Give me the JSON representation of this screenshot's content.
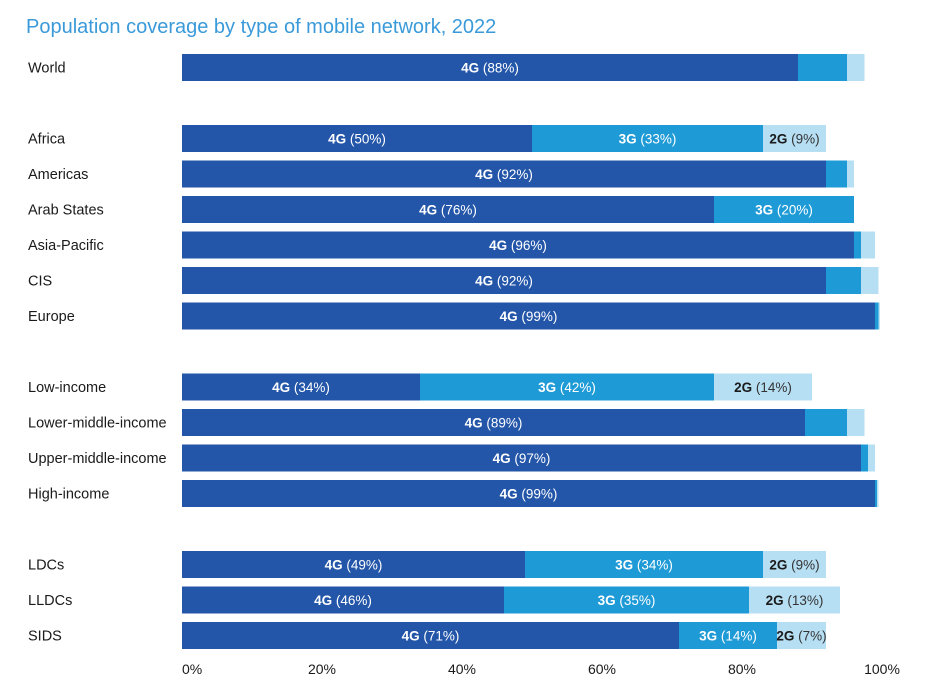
{
  "chart_data": {
    "type": "bar",
    "orientation": "horizontal",
    "stacked": true,
    "title": "Population coverage by type of mobile network, 2022",
    "xlim": [
      0,
      100
    ],
    "x_ticks": [
      "0%",
      "20%",
      "40%",
      "60%",
      "80%",
      "100%"
    ],
    "grid": false,
    "legend": "none",
    "colors": {
      "4G": "#2356a8",
      "3G": "#1e9ad6",
      "2G": "#b7dff3"
    },
    "groups": [
      [
        "World"
      ],
      [
        "Africa",
        "Americas",
        "Arab States",
        "Asia-Pacific",
        "CIS",
        "Europe"
      ],
      [
        "Low-income",
        "Lower-middle-income",
        "Upper-middle-income",
        "High-income"
      ],
      [
        "LDCs",
        "LLDCs",
        "SIDS"
      ]
    ],
    "categories": [
      "World",
      "Africa",
      "Americas",
      "Arab States",
      "Asia-Pacific",
      "CIS",
      "Europe",
      "Low-income",
      "Lower-middle-income",
      "Upper-middle-income",
      "High-income",
      "LDCs",
      "LLDCs",
      "SIDS"
    ],
    "series": [
      {
        "name": "4G",
        "values": [
          88,
          50,
          92,
          76,
          96,
          92,
          99,
          34,
          89,
          97,
          99,
          49,
          46,
          71
        ],
        "labels": [
          "4G (88%)",
          "4G (50%)",
          "4G (92%)",
          "4G (76%)",
          "4G (96%)",
          "4G (92%)",
          "4G (99%)",
          "4G (34%)",
          "4G (89%)",
          "4G (97%)",
          "4G (99%)",
          "4G (49%)",
          "4G (46%)",
          "4G (71%)"
        ]
      },
      {
        "name": "3G",
        "values": [
          7,
          33,
          3,
          20,
          1,
          5,
          0.5,
          42,
          6,
          1,
          0.3,
          34,
          35,
          14
        ],
        "labels": [
          "",
          "3G (33%)",
          "",
          "3G (20%)",
          "",
          "",
          "",
          "3G (42%)",
          "",
          "",
          "",
          "3G (34%)",
          "3G (35%)",
          "3G (14%)"
        ]
      },
      {
        "name": "2G",
        "values": [
          2.5,
          9,
          1,
          0,
          2,
          2.5,
          0.2,
          14,
          2.5,
          1,
          0.2,
          9,
          13,
          7
        ],
        "labels": [
          "",
          "2G (9%)",
          "",
          "",
          "",
          "",
          "",
          "2G (14%)",
          "",
          "",
          "",
          "2G (9%)",
          "2G (13%)",
          "2G (7%)"
        ]
      }
    ]
  }
}
